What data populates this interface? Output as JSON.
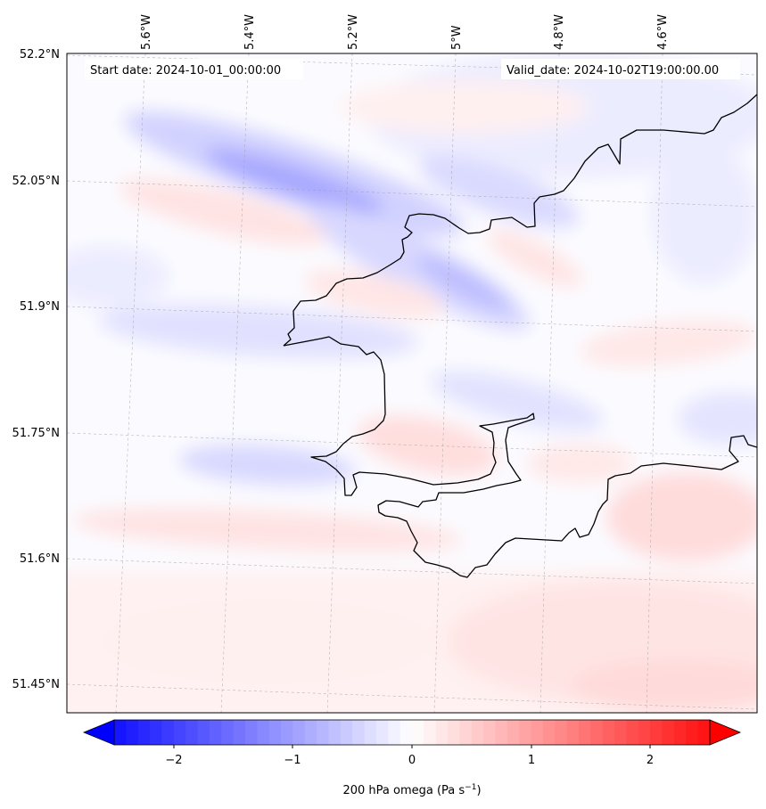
{
  "header": {
    "start_date": "Start date: 2024-10-01_00:00:00",
    "valid_date": "Valid_date: 2024-10-02T19:00:00.00"
  },
  "map": {
    "lon_labels": [
      "5.6°W",
      "5.4°W",
      "5.2°W",
      "5°W",
      "4.8°W",
      "4.6°W"
    ],
    "lat_labels": [
      "52.2°N",
      "52.05°N",
      "51.9°N",
      "51.75°N",
      "51.6°N",
      "51.45°N"
    ],
    "field": "omega at 200 hPa",
    "negative_color": "#0000ff",
    "positive_color": "#ff0000",
    "coastline_color": "#000000",
    "gridlines": true
  },
  "colorbar": {
    "tick_labels": [
      "−2",
      "−1",
      "0",
      "1",
      "2"
    ],
    "range": [
      -2.6,
      2.6
    ],
    "label": "200 hPa omega (Pa s",
    "label_sup": "−1",
    "label_close": ")"
  }
}
